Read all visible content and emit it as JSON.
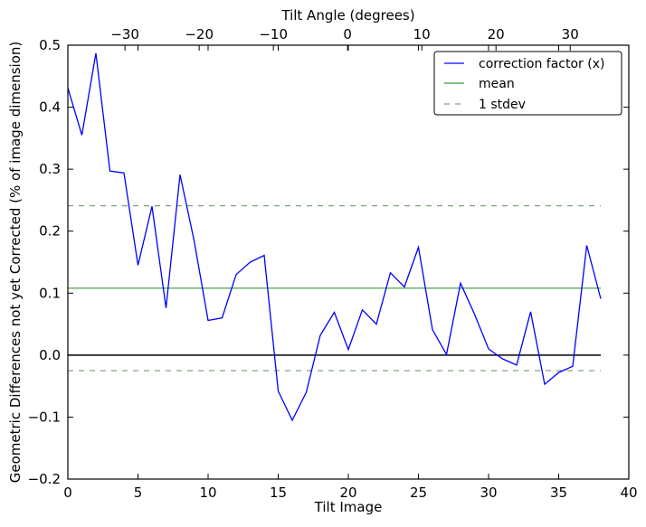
{
  "chart_data": {
    "type": "line",
    "xlabel": "Tilt Image",
    "ylabel": "Geometric Differences not yet Corrected (% of image dimension)",
    "top_xlabel": "Tilt Angle (degrees)",
    "xlim": [
      0,
      40
    ],
    "ylim": [
      -0.2,
      0.5
    ],
    "top_xlim": [
      -37.7,
      37.9
    ],
    "x_ticks": [
      0,
      5,
      10,
      15,
      20,
      25,
      30,
      35,
      40
    ],
    "y_ticks": [
      -0.2,
      -0.1,
      0.0,
      0.1,
      0.2,
      0.3,
      0.4,
      0.5
    ],
    "y_tick_labels": [
      "−0.2",
      "−0.1",
      "0.0",
      "0.1",
      "0.2",
      "0.3",
      "0.4",
      "0.5"
    ],
    "top_ticks": [
      -30,
      -20,
      -10,
      0,
      10,
      20,
      30
    ],
    "top_tick_labels": [
      "−30",
      "−20",
      "−10",
      "0",
      "10",
      "20",
      "30"
    ],
    "grid": false,
    "legend_position": "top-right",
    "series": [
      {
        "name": "correction factor (x)",
        "color": "#0000ff",
        "style": "solid",
        "x": [
          0,
          1,
          2,
          3,
          4,
          5,
          6,
          7,
          8,
          9,
          10,
          11,
          12,
          13,
          14,
          15,
          16,
          17,
          18,
          19,
          20,
          21,
          22,
          23,
          24,
          25,
          26,
          27,
          28,
          29,
          30,
          31,
          32,
          33,
          34,
          35,
          36,
          37,
          38
        ],
        "y": [
          0.431,
          0.355,
          0.487,
          0.297,
          0.294,
          0.145,
          0.24,
          0.076,
          0.291,
          0.185,
          0.056,
          0.06,
          0.13,
          0.15,
          0.161,
          -0.058,
          -0.105,
          -0.06,
          0.032,
          0.069,
          0.009,
          0.073,
          0.05,
          0.133,
          0.11,
          0.174,
          0.041,
          0.001,
          0.116,
          0.066,
          0.01,
          -0.006,
          -0.016,
          0.07,
          -0.047,
          -0.028,
          -0.018,
          0.177,
          0.091
        ]
      },
      {
        "name": "mean",
        "color": "#3a9a3a",
        "style": "solid",
        "value": 0.108,
        "x": [
          0,
          38
        ]
      },
      {
        "name": "1 stdev",
        "color": "#7fa37f",
        "style": "dashed",
        "values": [
          0.241,
          -0.025
        ],
        "x": [
          0,
          38
        ]
      }
    ],
    "zero_line": {
      "value": 0.0,
      "color": "#000000",
      "x": [
        0,
        38
      ]
    }
  }
}
